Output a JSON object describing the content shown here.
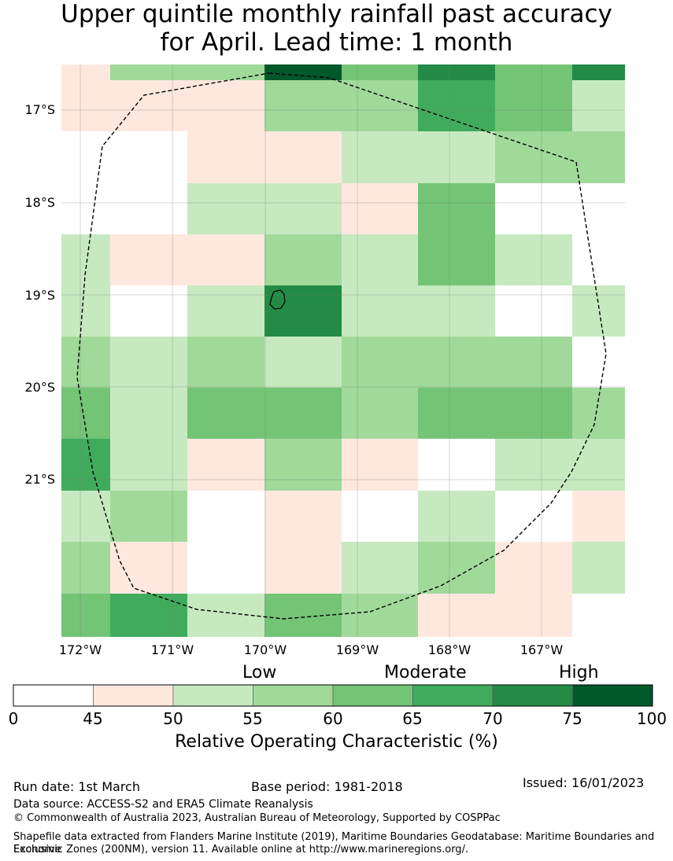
{
  "title": {
    "line1": "Upper quintile monthly rainfall past accuracy",
    "line2": "for April. Lead time: 1 month"
  },
  "map": {
    "lat_labels": [
      "17°S",
      "18°S",
      "19°S",
      "20°S",
      "21°S"
    ],
    "lon_labels": [
      "172°W",
      "171°W",
      "170°W",
      "169°W",
      "168°W",
      "167°W"
    ],
    "grid_colors": [
      [
        "#fee8de",
        "#a1d99b",
        "#a1d99b",
        "#00582b",
        "#74c476",
        "#238b45",
        "#74c476",
        "#238b45"
      ],
      [
        "#fee8de",
        "#fee8de",
        "#fee8de",
        "#a1d99b",
        "#a1d99b",
        "#41ab5d",
        "#74c476",
        "#c7e9c0"
      ],
      [
        "#ffffff",
        "#ffffff",
        "#fee8de",
        "#fee8de",
        "#c7e9c0",
        "#c7e9c0",
        "#a1d99b",
        "#a1d99b"
      ],
      [
        "#ffffff",
        "#ffffff",
        "#c7e9c0",
        "#c7e9c0",
        "#fee8de",
        "#74c476",
        "#ffffff",
        "#ffffff"
      ],
      [
        "#c7e9c0",
        "#fee8de",
        "#fee8de",
        "#a1d99b",
        "#c7e9c0",
        "#74c476",
        "#c7e9c0",
        "#ffffff"
      ],
      [
        "#c7e9c0",
        "#ffffff",
        "#c7e9c0",
        "#238b45",
        "#c7e9c0",
        "#c7e9c0",
        "#ffffff",
        "#c7e9c0"
      ],
      [
        "#a1d99b",
        "#c7e9c0",
        "#a1d99b",
        "#c7e9c0",
        "#a1d99b",
        "#a1d99b",
        "#a1d99b",
        "#ffffff"
      ],
      [
        "#74c476",
        "#c7e9c0",
        "#74c476",
        "#74c476",
        "#a1d99b",
        "#74c476",
        "#74c476",
        "#a1d99b"
      ],
      [
        "#41ab5d",
        "#c7e9c0",
        "#fee8de",
        "#a1d99b",
        "#fee8de",
        "#ffffff",
        "#c7e9c0",
        "#c7e9c0"
      ],
      [
        "#c7e9c0",
        "#a1d99b",
        "#ffffff",
        "#fee8de",
        "#ffffff",
        "#c7e9c0",
        "#ffffff",
        "#fee8de"
      ],
      [
        "#a1d99b",
        "#fee8de",
        "#ffffff",
        "#fee8de",
        "#c7e9c0",
        "#a1d99b",
        "#fee8de",
        "#c7e9c0"
      ],
      [
        "#74c476",
        "#41ab5d",
        "#c7e9c0",
        "#74c476",
        "#a1d99b",
        "#fee8de",
        "#fee8de",
        "#ffffff"
      ]
    ]
  },
  "colorbar": {
    "category_labels": [
      "Low",
      "Moderate",
      "High"
    ],
    "ticks": [
      "0",
      "45",
      "50",
      "55",
      "60",
      "65",
      "70",
      "75",
      "100"
    ],
    "colors": [
      "#ffffff",
      "#fee8de",
      "#c7e9c0",
      "#a1d99b",
      "#74c476",
      "#41ab5d",
      "#238b45",
      "#00582b"
    ],
    "label": "Relative Operating Characteristic (%)"
  },
  "footer": {
    "run_date": "Run date: 1st March",
    "base_period": "Base period: 1981-2018",
    "issued": "Issued: 16/01/2023",
    "data_source": "Data source: ACCESS-S2 and ERA5 Climate Reanalysis",
    "copyright": "© Commonwealth of Australia 2023, Australian Bureau of Meteorology, Supported by COSPPac",
    "shapefile_line1": "Shapefile data extracted from Flanders Marine Institute (2019), Maritime Boundaries Geodatabase: Maritime Boundaries and Exclusive",
    "shapefile_line2": "Economic Zones (200NM), version 11. Available online at http://www.marineregions.org/."
  }
}
